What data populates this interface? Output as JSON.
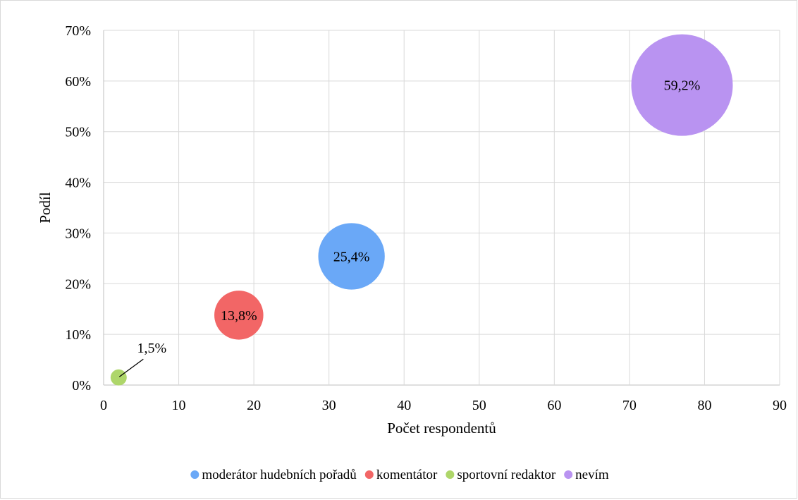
{
  "chart_data": {
    "type": "scatter",
    "title": "",
    "xlabel": "Počet respondentů",
    "ylabel": "Podíl",
    "xlim": [
      0,
      90
    ],
    "ylim": [
      0,
      70
    ],
    "x_ticks": [
      0,
      10,
      20,
      30,
      40,
      50,
      60,
      70,
      80,
      90
    ],
    "y_ticks": [
      0,
      10,
      20,
      30,
      40,
      50,
      60,
      70
    ],
    "x_tick_labels": [
      "0",
      "10",
      "20",
      "30",
      "40",
      "50",
      "60",
      "70",
      "80",
      "90"
    ],
    "y_tick_labels": [
      "0%",
      "10%",
      "20%",
      "30%",
      "40%",
      "50%",
      "60%",
      "70%"
    ],
    "grid": true,
    "legend_position": "bottom",
    "series": [
      {
        "name": "moderátor hudebních pořadů",
        "x": 33,
        "y": 25.4,
        "label": "25,4%",
        "color": "#6aa8f7"
      },
      {
        "name": "komentátor",
        "x": 18,
        "y": 13.8,
        "label": "13,8%",
        "color": "#f26666"
      },
      {
        "name": "sportovní redaktor",
        "x": 2,
        "y": 1.5,
        "label": "1,5%",
        "color": "#aed66a"
      },
      {
        "name": "nevím",
        "x": 77,
        "y": 59.2,
        "label": "59,2%",
        "color": "#b993f1"
      }
    ]
  }
}
